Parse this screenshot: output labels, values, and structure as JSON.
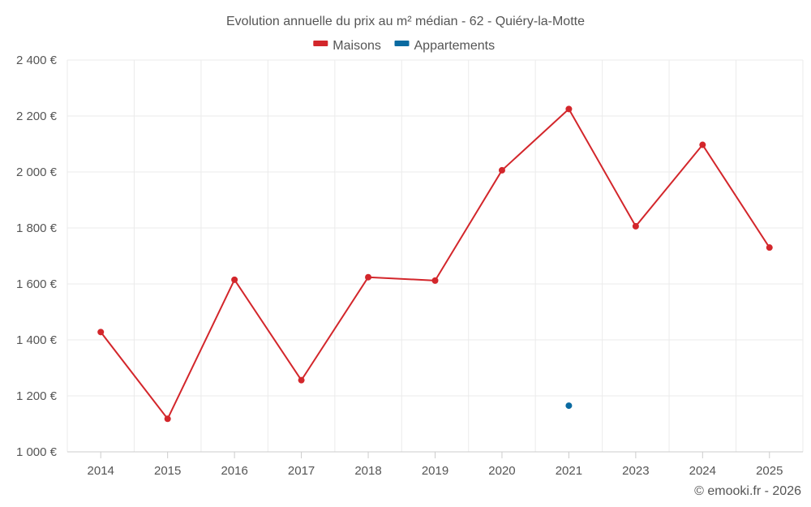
{
  "chart_data": {
    "type": "line",
    "title": "Evolution annuelle du prix au m² médian - 62 - Quiéry-la-Motte",
    "categories": [
      "2014",
      "2015",
      "2016",
      "2017",
      "2018",
      "2019",
      "2020",
      "2021",
      "2023",
      "2024",
      "2025"
    ],
    "series": [
      {
        "name": "Maisons",
        "color": "#d3262b",
        "values": [
          1428,
          1118,
          1615,
          1256,
          1624,
          1612,
          2006,
          2225,
          1806,
          2097,
          1730
        ]
      },
      {
        "name": "Appartements",
        "color": "#0a6aa1",
        "values": [
          null,
          null,
          null,
          null,
          null,
          null,
          null,
          1165,
          null,
          null,
          null
        ]
      }
    ],
    "ylim": [
      1000,
      2400
    ],
    "yticks": [
      1000,
      1200,
      1400,
      1600,
      1800,
      2000,
      2200,
      2400
    ],
    "ytick_labels": [
      "1 000 €",
      "1 200 €",
      "1 400 €",
      "1 600 €",
      "1 800 €",
      "2 000 €",
      "2 200 €",
      "2 400 €"
    ],
    "xlabel": "",
    "ylabel": "",
    "grid": true,
    "legend_position": "top-center"
  },
  "footer": {
    "copyright": "© emooki.fr - 2026"
  }
}
